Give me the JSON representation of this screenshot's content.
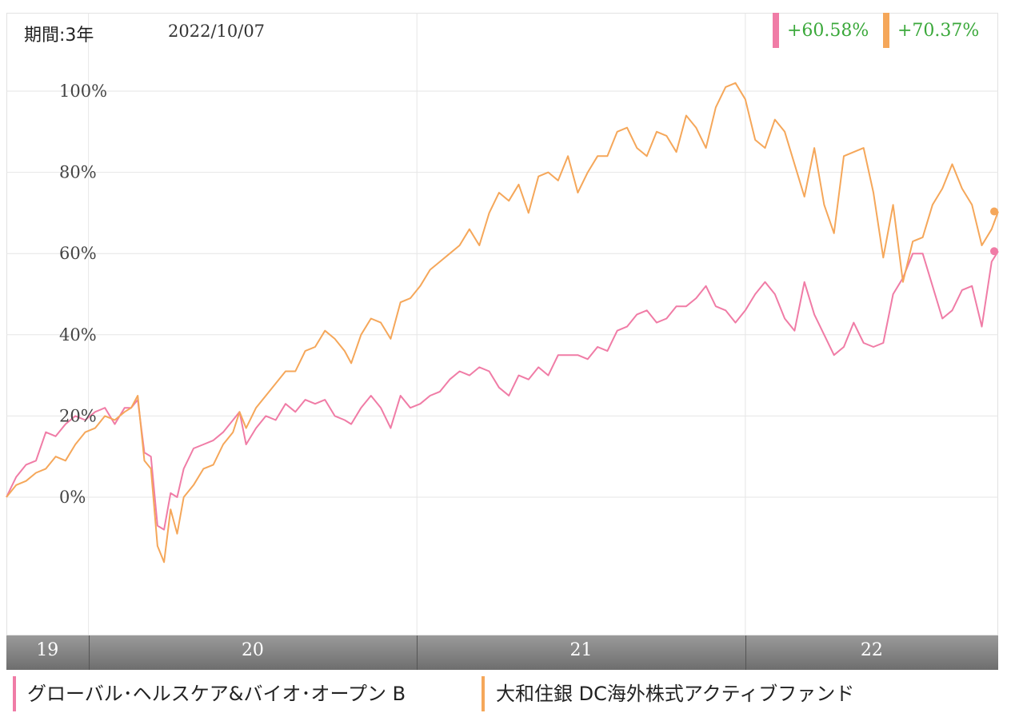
{
  "header": {
    "period_label": "期間:3年",
    "date_label": "2022/10/07"
  },
  "returns": [
    {
      "value": "+60.58%",
      "color": "#f07ca6"
    },
    {
      "value": "+70.37%",
      "color": "#f5a75a"
    }
  ],
  "legend": [
    {
      "label": "グローバル･ヘルスケア&バイオ･オープン B",
      "color": "#f07ca6"
    },
    {
      "label": "大和住銀 DC海外株式アクティブファンド",
      "color": "#f5a75a"
    }
  ],
  "chart_data": {
    "type": "line",
    "x_range": [
      2019.75,
      2022.77
    ],
    "ylim": [
      -35,
      120
    ],
    "y_ticks": [
      0,
      20,
      40,
      60,
      80,
      100
    ],
    "y_tick_labels": [
      "0%",
      "20%",
      "40%",
      "60%",
      "80%",
      "100%"
    ],
    "x_ticks": [
      {
        "label": "19",
        "at": 2019.75
      },
      {
        "label": "20",
        "at": 2020.0
      },
      {
        "label": "21",
        "at": 2021.0
      },
      {
        "label": "22",
        "at": 2022.0
      }
    ],
    "x_gridlines": [
      2020.0,
      2021.0,
      2022.0
    ],
    "grid": true,
    "series": [
      {
        "color": "#f07ca6",
        "end_value": 60.58,
        "points": [
          [
            2019.75,
            0
          ],
          [
            2019.78,
            5
          ],
          [
            2019.81,
            8
          ],
          [
            2019.84,
            9
          ],
          [
            2019.87,
            16
          ],
          [
            2019.9,
            15
          ],
          [
            2019.93,
            18
          ],
          [
            2019.96,
            20
          ],
          [
            2019.99,
            19
          ],
          [
            2020.02,
            21
          ],
          [
            2020.05,
            22
          ],
          [
            2020.08,
            18
          ],
          [
            2020.11,
            22
          ],
          [
            2020.13,
            22
          ],
          [
            2020.15,
            24
          ],
          [
            2020.17,
            11
          ],
          [
            2020.19,
            10
          ],
          [
            2020.21,
            -7
          ],
          [
            2020.23,
            -8
          ],
          [
            2020.25,
            1
          ],
          [
            2020.27,
            0
          ],
          [
            2020.29,
            7
          ],
          [
            2020.32,
            12
          ],
          [
            2020.35,
            13
          ],
          [
            2020.38,
            14
          ],
          [
            2020.41,
            16
          ],
          [
            2020.44,
            19
          ],
          [
            2020.46,
            21
          ],
          [
            2020.48,
            13
          ],
          [
            2020.51,
            17
          ],
          [
            2020.54,
            20
          ],
          [
            2020.57,
            19
          ],
          [
            2020.6,
            23
          ],
          [
            2020.63,
            21
          ],
          [
            2020.66,
            24
          ],
          [
            2020.69,
            23
          ],
          [
            2020.72,
            24
          ],
          [
            2020.75,
            20
          ],
          [
            2020.78,
            19
          ],
          [
            2020.8,
            18
          ],
          [
            2020.83,
            22
          ],
          [
            2020.86,
            25
          ],
          [
            2020.89,
            22
          ],
          [
            2020.92,
            17
          ],
          [
            2020.95,
            25
          ],
          [
            2020.98,
            22
          ],
          [
            2021.01,
            23
          ],
          [
            2021.04,
            25
          ],
          [
            2021.07,
            26
          ],
          [
            2021.1,
            29
          ],
          [
            2021.13,
            31
          ],
          [
            2021.16,
            30
          ],
          [
            2021.19,
            32
          ],
          [
            2021.22,
            31
          ],
          [
            2021.25,
            27
          ],
          [
            2021.28,
            25
          ],
          [
            2021.31,
            30
          ],
          [
            2021.34,
            29
          ],
          [
            2021.37,
            32
          ],
          [
            2021.4,
            30
          ],
          [
            2021.43,
            35
          ],
          [
            2021.46,
            35
          ],
          [
            2021.49,
            35
          ],
          [
            2021.52,
            34
          ],
          [
            2021.55,
            37
          ],
          [
            2021.58,
            36
          ],
          [
            2021.61,
            41
          ],
          [
            2021.64,
            42
          ],
          [
            2021.67,
            45
          ],
          [
            2021.7,
            46
          ],
          [
            2021.73,
            43
          ],
          [
            2021.76,
            44
          ],
          [
            2021.79,
            47
          ],
          [
            2021.82,
            47
          ],
          [
            2021.85,
            49
          ],
          [
            2021.88,
            52
          ],
          [
            2021.91,
            47
          ],
          [
            2021.94,
            46
          ],
          [
            2021.97,
            43
          ],
          [
            2022.0,
            46
          ],
          [
            2022.03,
            50
          ],
          [
            2022.06,
            53
          ],
          [
            2022.09,
            50
          ],
          [
            2022.12,
            44
          ],
          [
            2022.15,
            41
          ],
          [
            2022.18,
            53
          ],
          [
            2022.21,
            45
          ],
          [
            2022.24,
            40
          ],
          [
            2022.27,
            35
          ],
          [
            2022.3,
            37
          ],
          [
            2022.33,
            43
          ],
          [
            2022.36,
            38
          ],
          [
            2022.39,
            37
          ],
          [
            2022.42,
            38
          ],
          [
            2022.45,
            50
          ],
          [
            2022.48,
            54
          ],
          [
            2022.51,
            60
          ],
          [
            2022.54,
            60
          ],
          [
            2022.57,
            52
          ],
          [
            2022.6,
            44
          ],
          [
            2022.63,
            46
          ],
          [
            2022.66,
            51
          ],
          [
            2022.69,
            52
          ],
          [
            2022.72,
            42
          ],
          [
            2022.75,
            58
          ],
          [
            2022.77,
            60.58
          ]
        ]
      },
      {
        "color": "#f5a75a",
        "end_value": 70.37,
        "points": [
          [
            2019.75,
            0
          ],
          [
            2019.78,
            3
          ],
          [
            2019.81,
            4
          ],
          [
            2019.84,
            6
          ],
          [
            2019.87,
            7
          ],
          [
            2019.9,
            10
          ],
          [
            2019.93,
            9
          ],
          [
            2019.96,
            13
          ],
          [
            2019.99,
            16
          ],
          [
            2020.02,
            17
          ],
          [
            2020.05,
            20
          ],
          [
            2020.08,
            19
          ],
          [
            2020.11,
            21
          ],
          [
            2020.13,
            22
          ],
          [
            2020.15,
            25
          ],
          [
            2020.17,
            9
          ],
          [
            2020.19,
            7
          ],
          [
            2020.21,
            -12
          ],
          [
            2020.23,
            -16
          ],
          [
            2020.25,
            -3
          ],
          [
            2020.27,
            -9
          ],
          [
            2020.29,
            0
          ],
          [
            2020.32,
            3
          ],
          [
            2020.35,
            7
          ],
          [
            2020.38,
            8
          ],
          [
            2020.41,
            13
          ],
          [
            2020.44,
            16
          ],
          [
            2020.46,
            21
          ],
          [
            2020.48,
            17
          ],
          [
            2020.51,
            22
          ],
          [
            2020.54,
            25
          ],
          [
            2020.57,
            28
          ],
          [
            2020.6,
            31
          ],
          [
            2020.63,
            31
          ],
          [
            2020.66,
            36
          ],
          [
            2020.69,
            37
          ],
          [
            2020.72,
            41
          ],
          [
            2020.75,
            39
          ],
          [
            2020.78,
            36
          ],
          [
            2020.8,
            33
          ],
          [
            2020.83,
            40
          ],
          [
            2020.86,
            44
          ],
          [
            2020.89,
            43
          ],
          [
            2020.92,
            39
          ],
          [
            2020.95,
            48
          ],
          [
            2020.98,
            49
          ],
          [
            2021.01,
            52
          ],
          [
            2021.04,
            56
          ],
          [
            2021.07,
            58
          ],
          [
            2021.1,
            60
          ],
          [
            2021.13,
            62
          ],
          [
            2021.16,
            66
          ],
          [
            2021.19,
            62
          ],
          [
            2021.22,
            70
          ],
          [
            2021.25,
            75
          ],
          [
            2021.28,
            73
          ],
          [
            2021.31,
            77
          ],
          [
            2021.34,
            70
          ],
          [
            2021.37,
            79
          ],
          [
            2021.4,
            80
          ],
          [
            2021.43,
            78
          ],
          [
            2021.46,
            84
          ],
          [
            2021.49,
            75
          ],
          [
            2021.52,
            80
          ],
          [
            2021.55,
            84
          ],
          [
            2021.58,
            84
          ],
          [
            2021.61,
            90
          ],
          [
            2021.64,
            91
          ],
          [
            2021.67,
            86
          ],
          [
            2021.7,
            84
          ],
          [
            2021.73,
            90
          ],
          [
            2021.76,
            89
          ],
          [
            2021.79,
            85
          ],
          [
            2021.82,
            94
          ],
          [
            2021.85,
            91
          ],
          [
            2021.88,
            86
          ],
          [
            2021.91,
            96
          ],
          [
            2021.94,
            101
          ],
          [
            2021.97,
            102
          ],
          [
            2022.0,
            98
          ],
          [
            2022.03,
            88
          ],
          [
            2022.06,
            86
          ],
          [
            2022.09,
            93
          ],
          [
            2022.12,
            90
          ],
          [
            2022.15,
            82
          ],
          [
            2022.18,
            74
          ],
          [
            2022.21,
            86
          ],
          [
            2022.24,
            72
          ],
          [
            2022.27,
            65
          ],
          [
            2022.3,
            84
          ],
          [
            2022.33,
            85
          ],
          [
            2022.36,
            86
          ],
          [
            2022.39,
            75
          ],
          [
            2022.42,
            59
          ],
          [
            2022.45,
            72
          ],
          [
            2022.48,
            53
          ],
          [
            2022.51,
            63
          ],
          [
            2022.54,
            64
          ],
          [
            2022.57,
            72
          ],
          [
            2022.6,
            76
          ],
          [
            2022.63,
            82
          ],
          [
            2022.66,
            76
          ],
          [
            2022.69,
            72
          ],
          [
            2022.72,
            62
          ],
          [
            2022.75,
            66
          ],
          [
            2022.77,
            70.37
          ]
        ]
      }
    ]
  }
}
